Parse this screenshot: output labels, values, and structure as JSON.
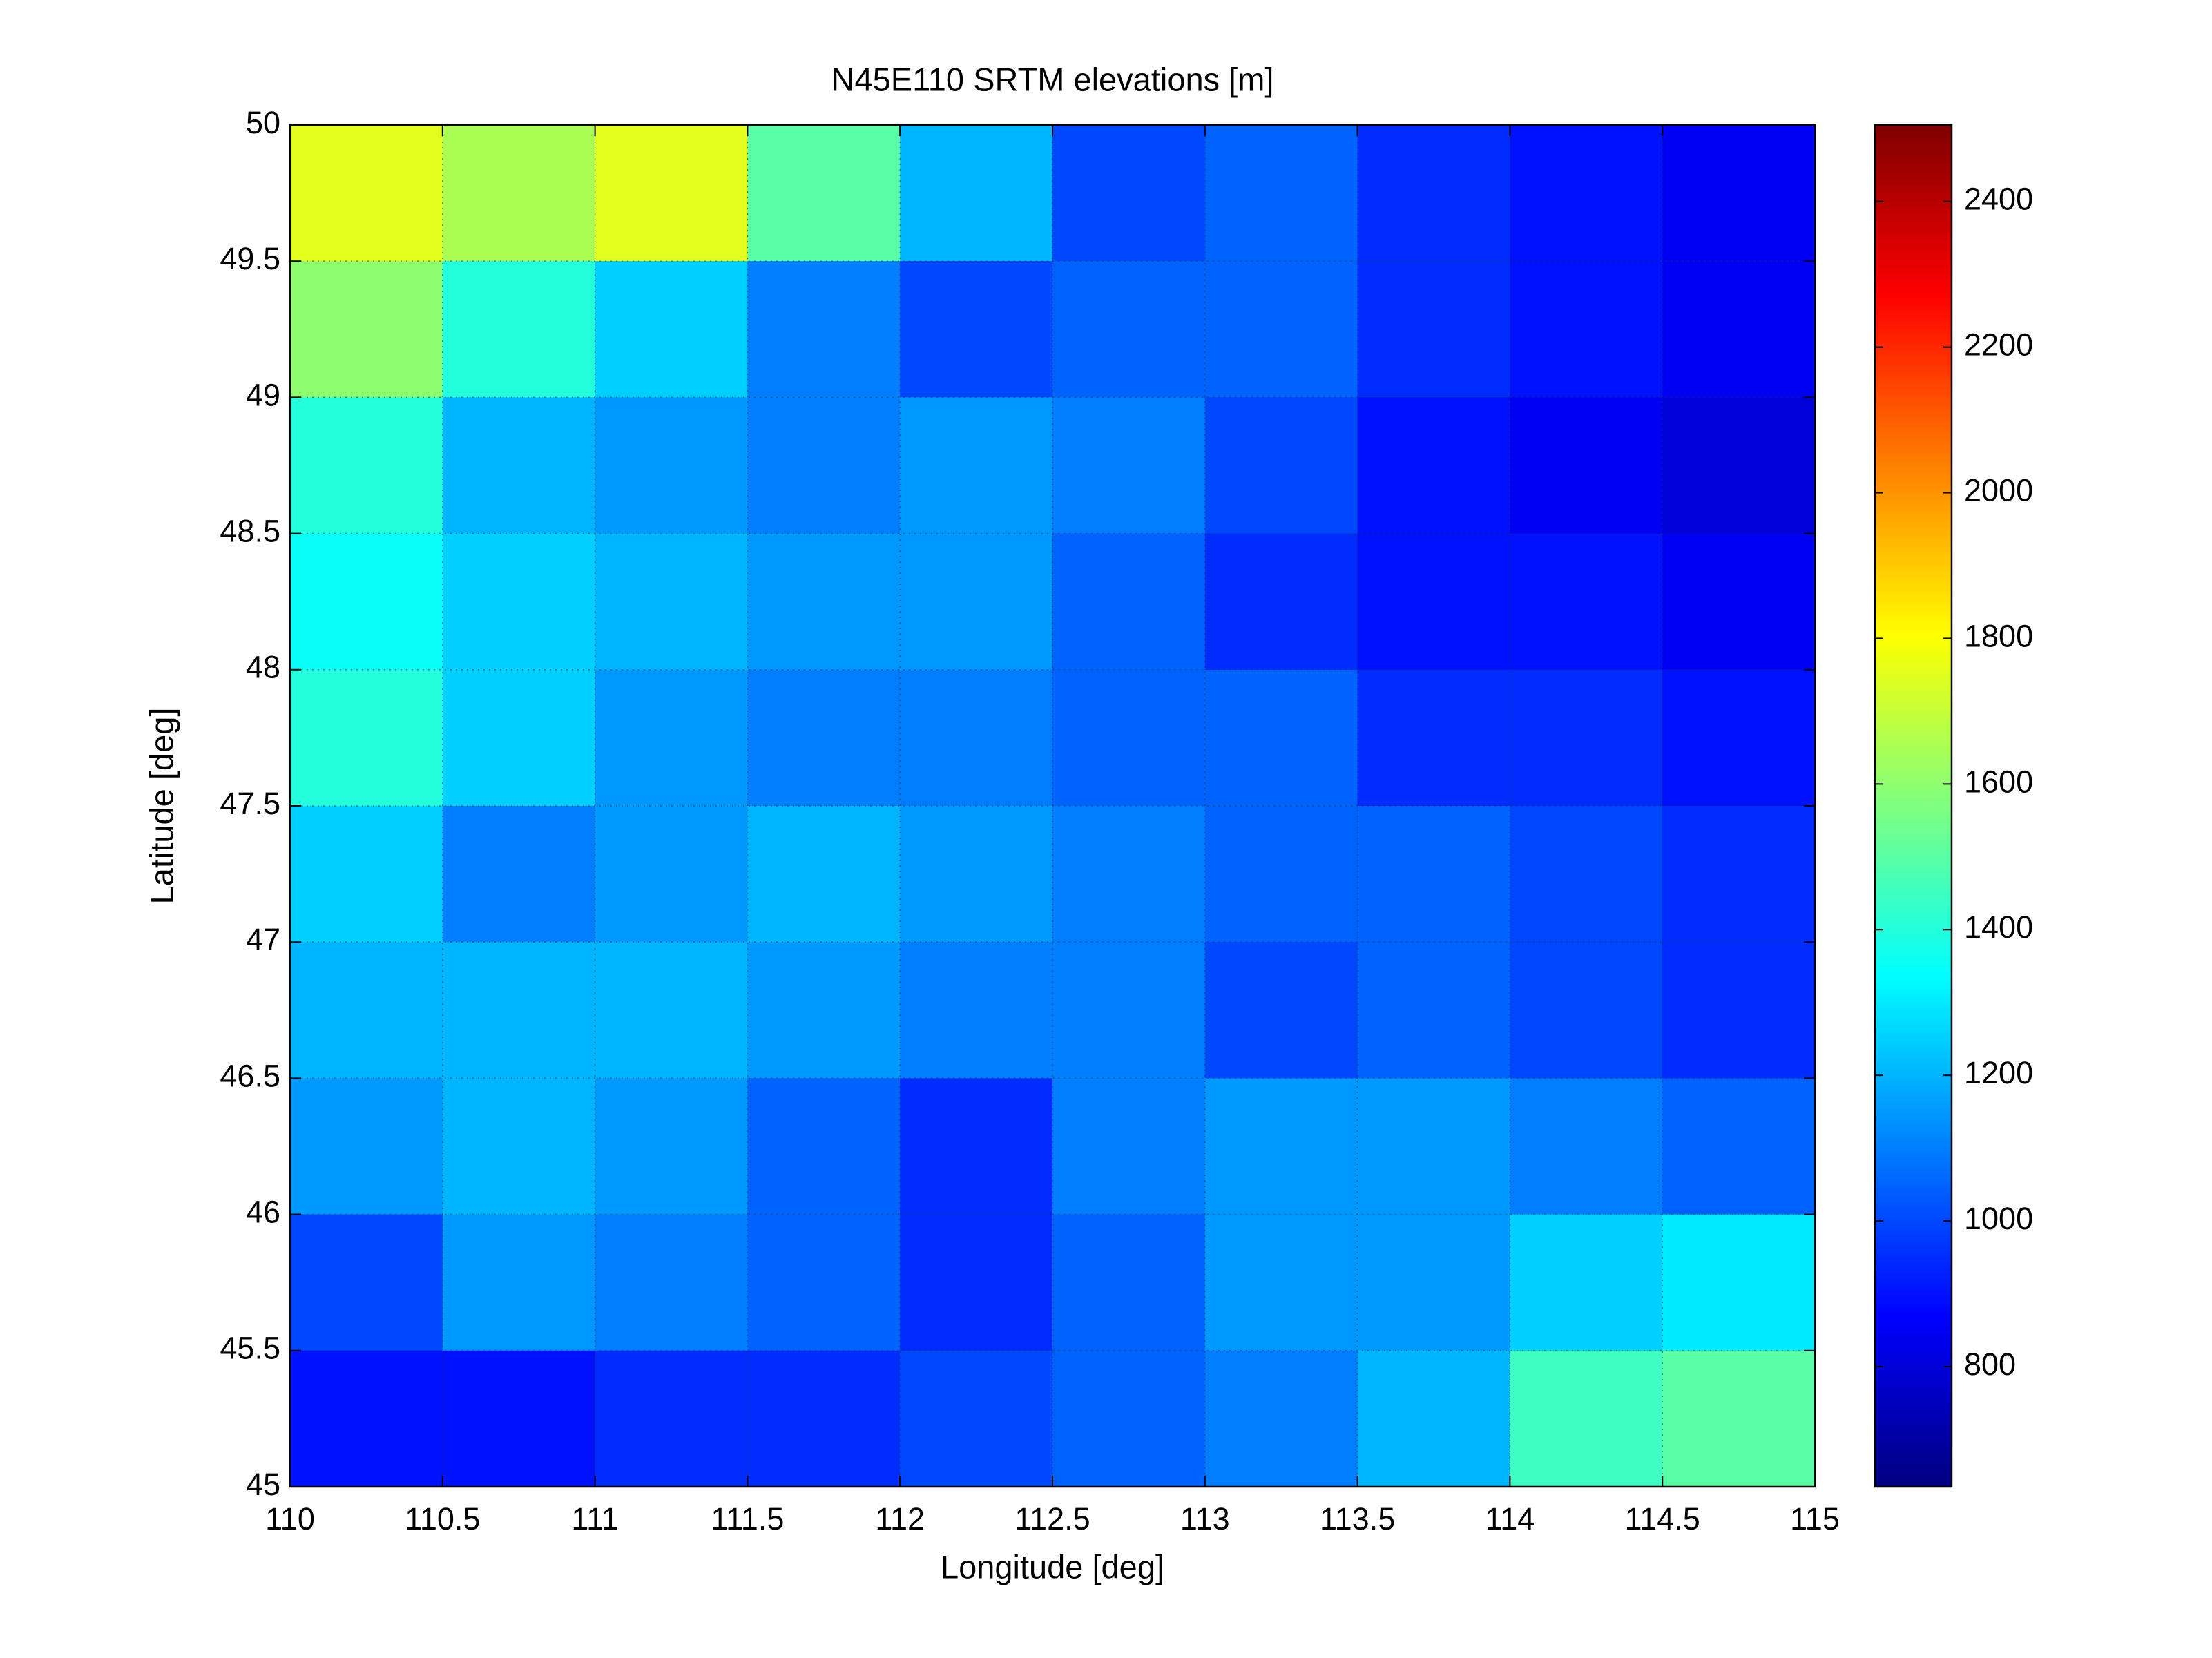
{
  "chart_data": {
    "type": "heatmap",
    "title": "N45E110 SRTM elevations [m]",
    "xlabel": "Longitude [deg]",
    "ylabel": "Latitude [deg]",
    "xlim": [
      110,
      115
    ],
    "ylim": [
      45,
      50
    ],
    "xticks": [
      110,
      110.5,
      111,
      111.5,
      112,
      112.5,
      113,
      113.5,
      114,
      114.5,
      115
    ],
    "yticks": [
      45,
      45.5,
      46,
      46.5,
      47,
      47.5,
      48,
      48.5,
      49,
      49.5,
      50
    ],
    "grid": true,
    "colormap": "jet",
    "clim": [
      635,
      2505
    ],
    "cticks": [
      800,
      1000,
      1200,
      1400,
      1600,
      1800,
      2000,
      2200,
      2400
    ],
    "z": [
      [
        1750,
        1650,
        1750,
        1500,
        1200,
        1000,
        1050,
        950,
        900,
        850
      ],
      [
        1600,
        1400,
        1250,
        1100,
        1000,
        1050,
        1050,
        950,
        900,
        850
      ],
      [
        1400,
        1200,
        1150,
        1100,
        1150,
        1100,
        1000,
        900,
        850,
        800
      ],
      [
        1350,
        1250,
        1200,
        1150,
        1150,
        1050,
        950,
        900,
        900,
        850
      ],
      [
        1400,
        1250,
        1150,
        1100,
        1100,
        1050,
        1050,
        950,
        950,
        900
      ],
      [
        1250,
        1100,
        1150,
        1200,
        1150,
        1100,
        1050,
        1050,
        1000,
        950
      ],
      [
        1200,
        1200,
        1200,
        1150,
        1100,
        1100,
        1000,
        1050,
        1000,
        950
      ],
      [
        1150,
        1200,
        1150,
        1050,
        950,
        1100,
        1150,
        1150,
        1100,
        1050
      ],
      [
        1000,
        1150,
        1100,
        1050,
        950,
        1050,
        1150,
        1150,
        1250,
        1300
      ],
      [
        900,
        900,
        950,
        950,
        1000,
        1050,
        1100,
        1200,
        1450,
        1500
      ]
    ]
  }
}
